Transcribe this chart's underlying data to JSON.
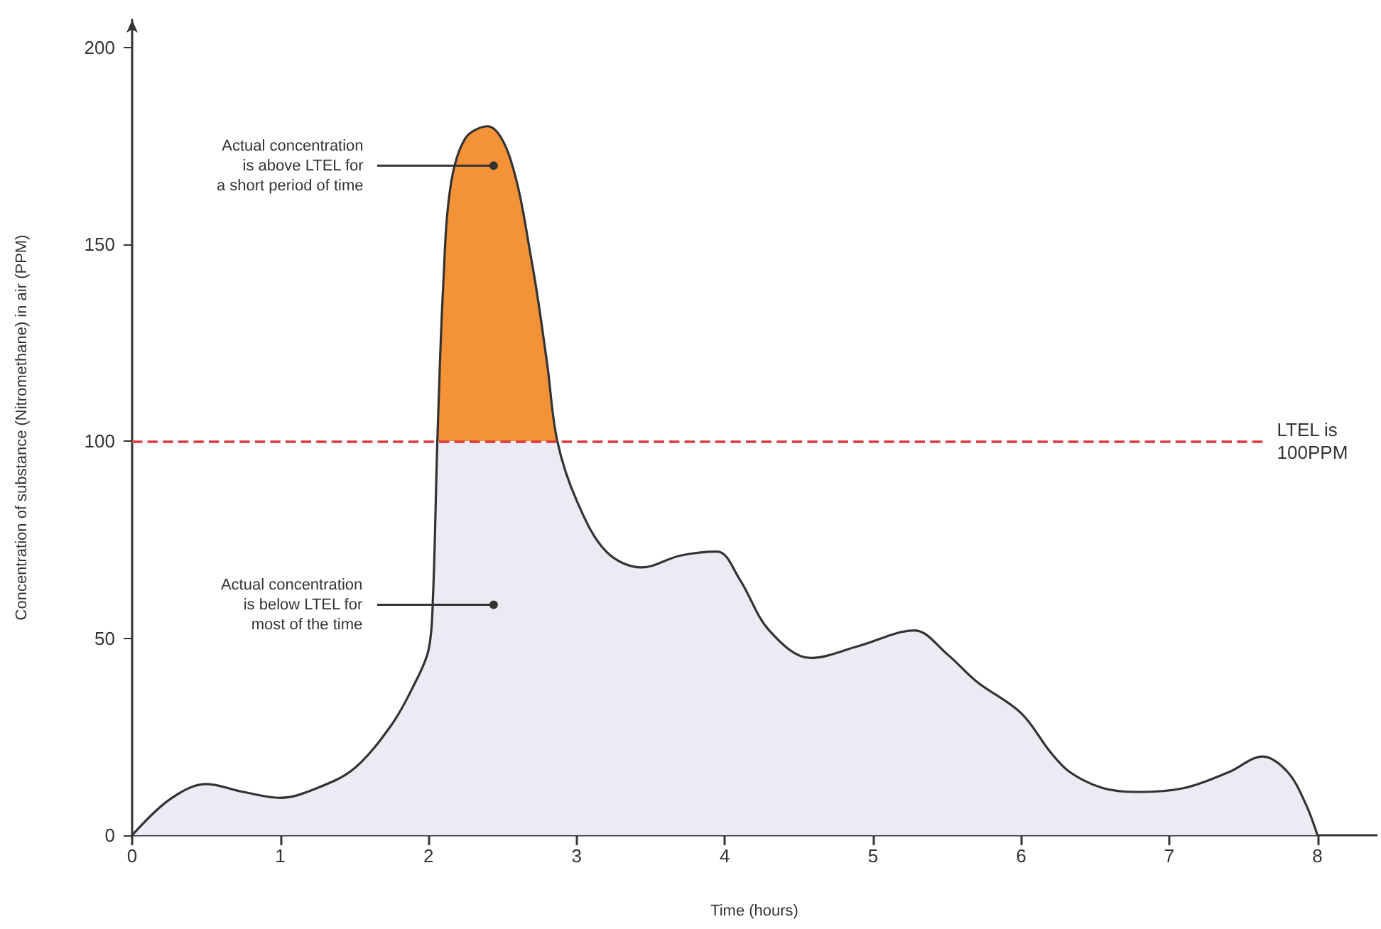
{
  "chart_data": {
    "type": "area",
    "xlabel": "Time (hours)",
    "ylabel": "Concentration of substance (Nitromethane) in air (PPM)",
    "x": [
      0,
      0.25,
      0.5,
      0.75,
      1.0,
      1.25,
      1.5,
      1.75,
      1.9,
      2.0,
      2.03,
      2.06,
      2.1,
      2.15,
      2.25,
      2.4,
      2.55,
      2.7,
      2.8,
      2.87,
      3.0,
      3.2,
      3.44,
      3.7,
      3.95,
      4.1,
      4.3,
      4.58,
      4.9,
      5.28,
      5.5,
      5.7,
      6.0,
      6.2,
      6.33,
      6.55,
      6.78,
      7.1,
      7.4,
      7.63,
      7.8,
      7.92,
      8.0
    ],
    "series": [
      {
        "color": "#333333",
        "values": [
          0,
          9,
          13,
          11,
          9.5,
          12,
          17,
          28,
          38,
          47,
          60,
          100,
          140,
          165,
          177,
          180,
          172,
          145,
          120,
          100,
          85,
          72,
          68,
          71,
          72,
          65,
          52,
          45,
          48,
          52,
          46,
          39,
          31,
          21,
          16,
          12,
          11,
          12,
          16,
          20,
          16,
          8,
          0
        ]
      }
    ],
    "xlim": [
      0,
      8.4
    ],
    "xticks": [
      0,
      1,
      2,
      3,
      4,
      5,
      6,
      7,
      8
    ],
    "ylim": [
      0,
      207
    ],
    "yticks": [
      0,
      50,
      100,
      150,
      200
    ],
    "grid": false,
    "marker": "none",
    "line_style": "solid",
    "ref_lines": [
      {
        "axis": "y",
        "value": 100,
        "label": "LTEL is\n100PPM",
        "color": "#d93a3a",
        "line_style": "dashed"
      }
    ],
    "annotations": [
      {
        "text": "Actual concentration\nis above LTEL for\na short period of time",
        "x": 2.44,
        "y": 170
      },
      {
        "text": "Actual concentration\nis below LTEL for\nmost of the time",
        "x": 2.44,
        "y": 58.5
      }
    ]
  }
}
